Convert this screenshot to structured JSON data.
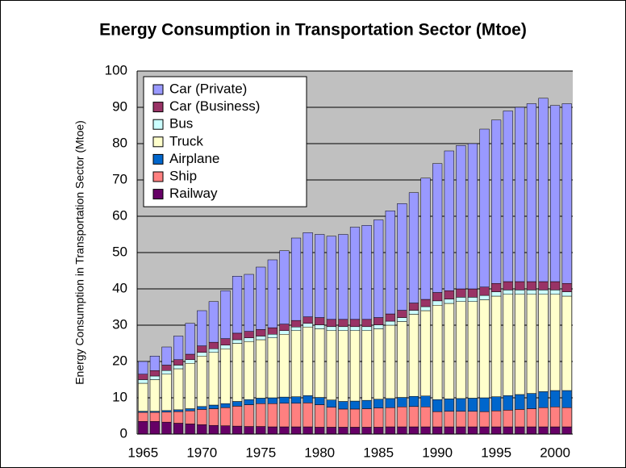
{
  "chart_data": {
    "type": "stacked_bar",
    "title": "Energy Consumption in Transportation Sector (Mtoe)",
    "y_label": "Energy Consumption in Transportation Sector (Mtoe)",
    "categories": [
      "1965",
      null,
      null,
      null,
      null,
      "1970",
      null,
      null,
      null,
      null,
      "1975",
      null,
      null,
      null,
      null,
      "1980",
      null,
      null,
      null,
      null,
      "1985",
      null,
      null,
      null,
      null,
      "1990",
      null,
      null,
      null,
      null,
      "1995",
      null,
      null,
      null,
      null,
      "2000",
      null
    ],
    "series": [
      {
        "name": "Railway",
        "color": "#660066",
        "values": [
          3.5,
          3.5,
          3.3,
          3.0,
          2.8,
          2.6,
          2.4,
          2.3,
          2.2,
          2.1,
          2.1,
          2.0,
          2.0,
          2.0,
          2.0,
          1.9,
          1.9,
          1.9,
          1.9,
          1.9,
          1.9,
          2.0,
          2.0,
          2.0,
          2.0,
          2.0,
          2.0,
          2.0,
          2.0,
          2.0,
          2.0,
          2.0,
          2.0,
          2.0,
          2.0,
          2.0,
          2.0
        ]
      },
      {
        "name": "Ship",
        "color": "#ff8080",
        "values": [
          2.5,
          2.5,
          2.8,
          3.2,
          3.6,
          4.2,
          4.6,
          5.0,
          5.5,
          6.0,
          6.3,
          6.4,
          6.5,
          6.5,
          6.6,
          6.2,
          5.5,
          5.0,
          5.0,
          5.1,
          5.3,
          5.3,
          5.5,
          5.6,
          5.5,
          4.2,
          4.3,
          4.3,
          4.3,
          4.2,
          4.4,
          4.6,
          4.8,
          5.0,
          5.3,
          5.5,
          5.3
        ]
      },
      {
        "name": "Airplane",
        "color": "#0066cc",
        "values": [
          0.3,
          0.3,
          0.4,
          0.5,
          0.6,
          0.8,
          1.0,
          1.1,
          1.3,
          1.4,
          1.5,
          1.6,
          1.7,
          1.8,
          2.0,
          2.0,
          2.0,
          2.1,
          2.2,
          2.3,
          2.4,
          2.5,
          2.6,
          2.8,
          3.0,
          3.3,
          3.4,
          3.5,
          3.6,
          3.8,
          3.9,
          4.0,
          4.1,
          4.2,
          4.4,
          4.5,
          4.7
        ]
      },
      {
        "name": "Truck",
        "color": "#ffffcc",
        "values": [
          7.7,
          8.7,
          10.0,
          11.3,
          12.5,
          13.9,
          14.5,
          15.1,
          16.0,
          16.0,
          16.1,
          16.5,
          17.3,
          18.2,
          18.9,
          18.9,
          19.1,
          19.5,
          19.4,
          19.2,
          19.4,
          20.2,
          20.9,
          22.6,
          23.5,
          26.0,
          26.3,
          26.7,
          26.6,
          27.0,
          27.7,
          27.9,
          27.6,
          27.3,
          26.8,
          26.5,
          26.0
        ]
      },
      {
        "name": "Bus",
        "color": "#ccffff",
        "values": [
          1.0,
          1.0,
          1.0,
          1.0,
          1.0,
          1.0,
          1.0,
          1.0,
          1.0,
          1.0,
          1.0,
          1.0,
          1.0,
          1.0,
          1.0,
          1.1,
          1.1,
          1.1,
          1.1,
          1.1,
          1.1,
          1.1,
          1.1,
          1.1,
          1.1,
          1.2,
          1.2,
          1.2,
          1.2,
          1.2,
          1.2,
          1.2,
          1.2,
          1.2,
          1.2,
          1.2,
          1.2
        ]
      },
      {
        "name": "Car (Business)",
        "color": "#993366",
        "values": [
          1.5,
          1.5,
          1.5,
          1.5,
          1.5,
          1.8,
          1.8,
          1.8,
          1.8,
          1.8,
          1.8,
          1.8,
          1.8,
          1.8,
          1.8,
          2.0,
          2.0,
          2.0,
          2.0,
          2.0,
          2.0,
          2.0,
          2.0,
          2.0,
          2.0,
          2.3,
          2.3,
          2.3,
          2.3,
          2.3,
          2.3,
          2.3,
          2.3,
          2.3,
          2.3,
          2.3,
          2.3
        ]
      },
      {
        "name": "Car (Private)",
        "color": "#9999ff",
        "values": [
          3.5,
          4.0,
          5.0,
          6.5,
          8.5,
          9.7,
          11.2,
          13.2,
          15.7,
          15.7,
          17.2,
          18.7,
          20.2,
          22.7,
          23.2,
          22.9,
          22.9,
          23.4,
          25.4,
          25.9,
          26.9,
          28.4,
          29.4,
          30.4,
          33.4,
          35.5,
          38.5,
          39.5,
          40.0,
          43.5,
          45.0,
          47.0,
          48.0,
          49.0,
          50.5,
          48.5,
          49.5
        ]
      }
    ],
    "ylim": [
      0,
      100
    ],
    "yticks": [
      0,
      10,
      20,
      30,
      40,
      50,
      60,
      70,
      80,
      90,
      100
    ],
    "grid": true,
    "plot_background": "#c0c0c0",
    "legend": "upper left"
  }
}
